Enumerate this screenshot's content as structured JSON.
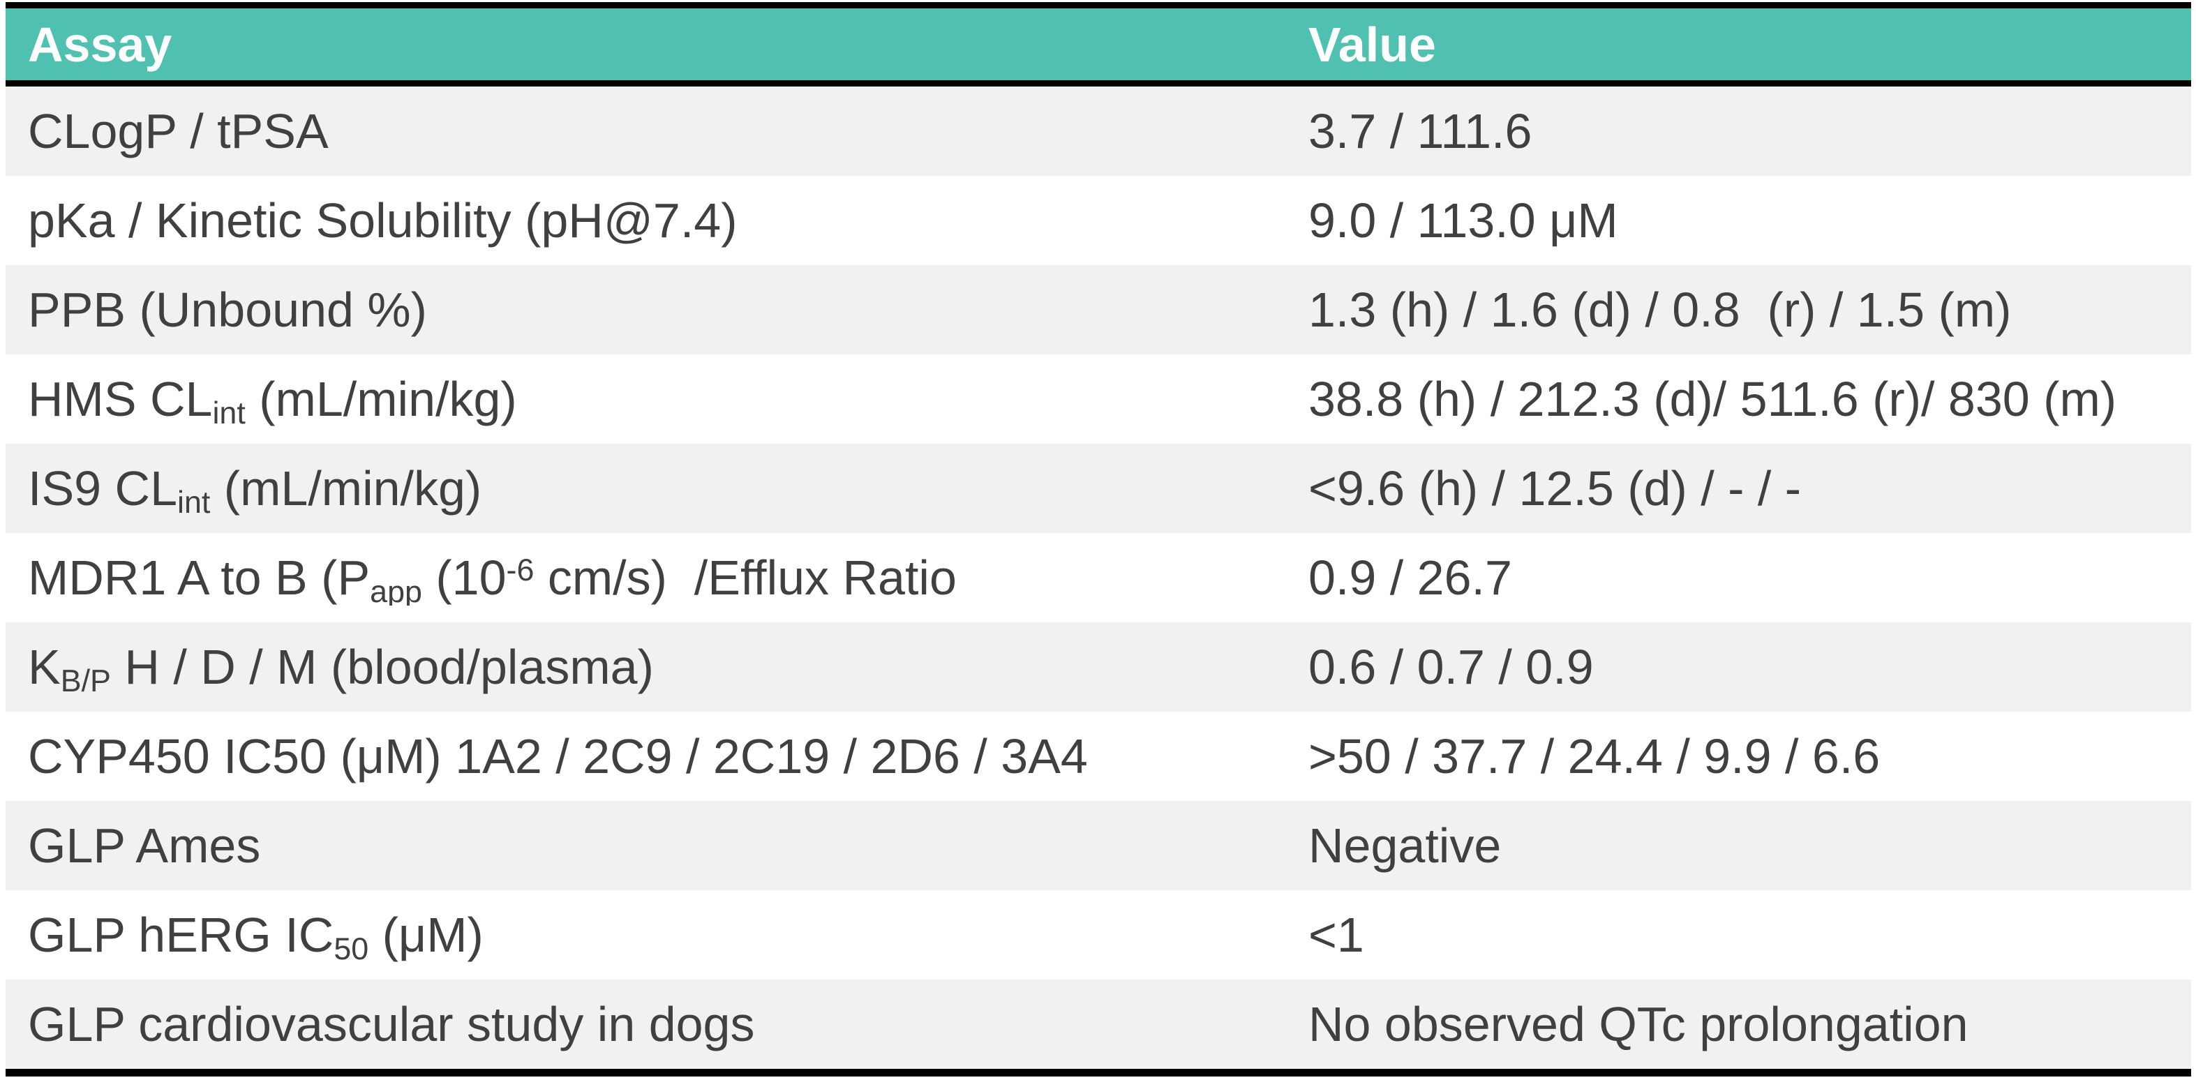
{
  "table": {
    "colors": {
      "header_bg": "#50c0b0",
      "header_text": "#ffffff",
      "row_alt_bg": "#f1f1f1",
      "row_bg": "#ffffff",
      "border": "#000000",
      "text": "#404040"
    },
    "columns": [
      {
        "label": "Assay"
      },
      {
        "label": "Value"
      }
    ],
    "rows": [
      {
        "assay": [
          [
            "CLogP / tPSA",
            ""
          ]
        ],
        "value": [
          [
            "3.7 / 111.6",
            ""
          ]
        ]
      },
      {
        "assay": [
          [
            "pKa / Kinetic Solubility (pH@7.4)",
            ""
          ]
        ],
        "value": [
          [
            "9.0 / 113.0 μM",
            ""
          ]
        ]
      },
      {
        "assay": [
          [
            "PPB (Unbound %)",
            ""
          ]
        ],
        "value": [
          [
            "1.3 (h) / 1.6 (d) / 0.8  (r) / 1.5 (m)",
            ""
          ]
        ]
      },
      {
        "assay": [
          [
            "HMS CL",
            ""
          ],
          [
            "int",
            "sub"
          ],
          [
            " (mL/min/kg)",
            ""
          ]
        ],
        "value": [
          [
            "38.8 (h) / 212.3 (d)/ 511.6 (r)/ 830 (m)",
            ""
          ]
        ]
      },
      {
        "assay": [
          [
            "IS9 CL",
            ""
          ],
          [
            "int",
            "sub"
          ],
          [
            " (mL/min/kg)",
            ""
          ]
        ],
        "value": [
          [
            "<9.6 (h) / 12.5 (d) / - / -",
            ""
          ]
        ]
      },
      {
        "assay": [
          [
            "MDR1 A to B (P",
            ""
          ],
          [
            "app",
            "sub"
          ],
          [
            " (10",
            ""
          ],
          [
            "-6",
            "sup"
          ],
          [
            " cm/s)  /Efflux Ratio",
            ""
          ]
        ],
        "value": [
          [
            "0.9 / 26.7",
            ""
          ]
        ]
      },
      {
        "assay": [
          [
            "K",
            ""
          ],
          [
            "B/P",
            "sub"
          ],
          [
            " H / D / M (blood/plasma)",
            ""
          ]
        ],
        "value": [
          [
            "0.6 / 0.7 / 0.9",
            ""
          ]
        ]
      },
      {
        "assay": [
          [
            "CYP450 IC50 (μM) 1A2 / 2C9 / 2C19 / 2D6 / 3A4",
            ""
          ]
        ],
        "value": [
          [
            ">50 / 37.7 / 24.4 / 9.9 / 6.6",
            ""
          ]
        ]
      },
      {
        "assay": [
          [
            "GLP Ames",
            ""
          ]
        ],
        "value": [
          [
            "Negative",
            ""
          ]
        ]
      },
      {
        "assay": [
          [
            "GLP hERG IC",
            ""
          ],
          [
            "50",
            "sub"
          ],
          [
            " (μM)",
            ""
          ]
        ],
        "value": [
          [
            "<1",
            ""
          ]
        ]
      },
      {
        "assay": [
          [
            "GLP cardiovascular study in dogs",
            ""
          ]
        ],
        "value": [
          [
            "No observed QTc prolongation",
            ""
          ]
        ]
      }
    ]
  }
}
